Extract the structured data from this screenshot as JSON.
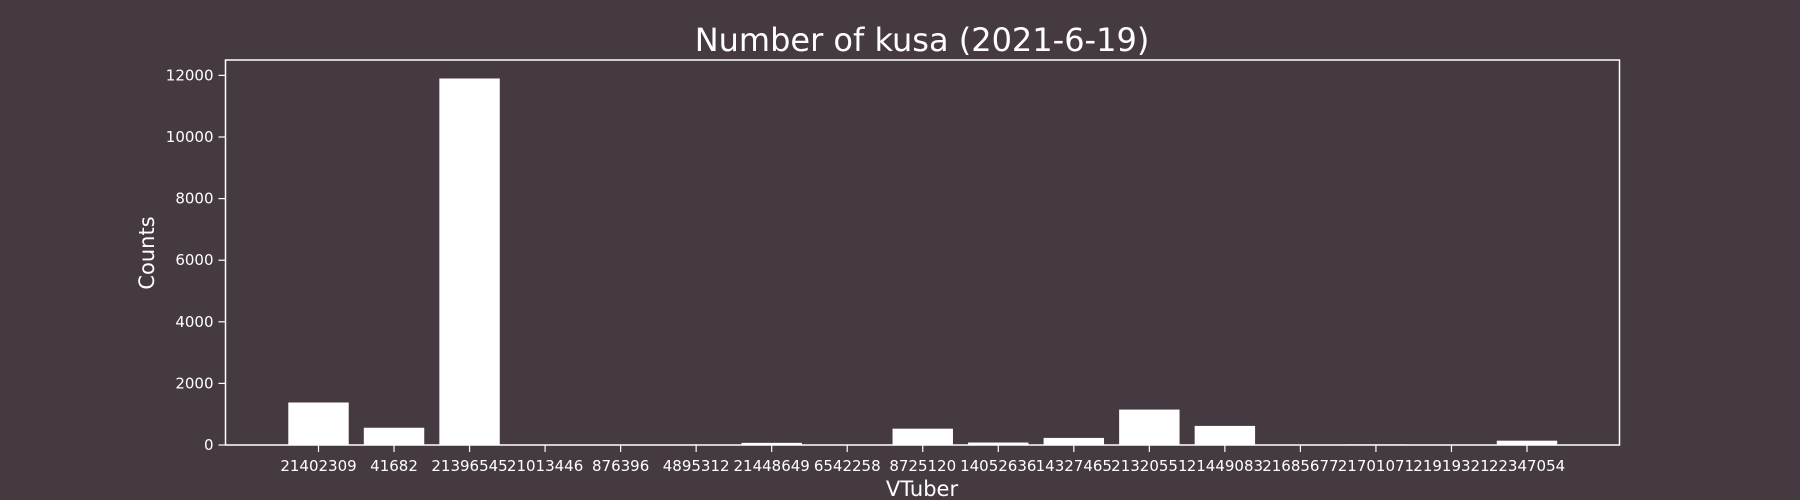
{
  "chart_data": {
    "type": "bar",
    "title": "Number of kusa (2021-6-19)",
    "xlabel": "VTuber",
    "ylabel": "Counts",
    "categories": [
      "21402309",
      "41682",
      "21396545",
      "21013446",
      "876396",
      "4895312",
      "21448649",
      "6542258",
      "8725120",
      "14052636",
      "14327465",
      "21320551",
      "21449083",
      "21685677",
      "21701071",
      "21919321",
      "22347054"
    ],
    "values": [
      1380,
      560,
      11900,
      5,
      5,
      5,
      70,
      5,
      530,
      80,
      230,
      1150,
      620,
      5,
      20,
      5,
      140
    ],
    "ylim": [
      0,
      12500
    ],
    "yticks": [
      0,
      2000,
      4000,
      6000,
      8000,
      10000,
      12000
    ],
    "grid": false,
    "colors": {
      "background": "#463a42",
      "bar": "#ffffff",
      "axes": "#ffffff",
      "text": "#ffffff"
    }
  }
}
